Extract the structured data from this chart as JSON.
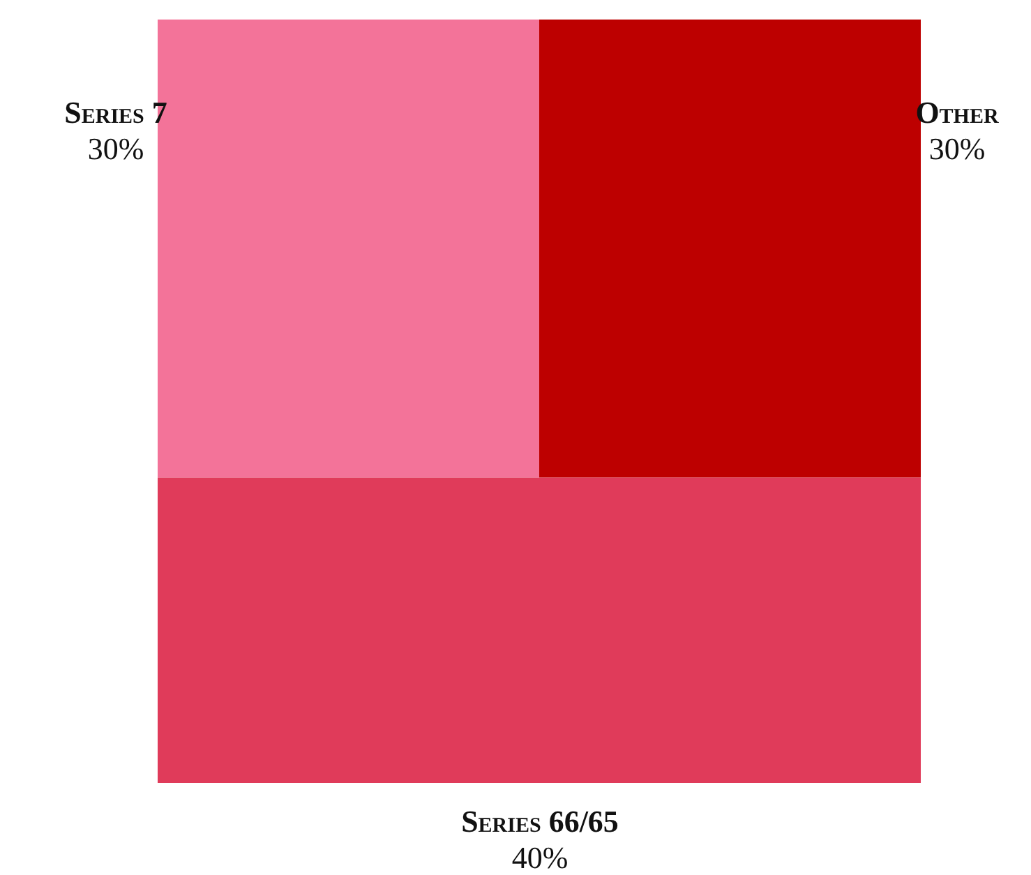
{
  "chart_data": {
    "type": "other",
    "categories": [
      "Series 7",
      "Other",
      "Series 66/65"
    ],
    "values": [
      30,
      30,
      40
    ],
    "value_labels": [
      "30%",
      "30%",
      "40%"
    ],
    "colors": [
      "#f37399",
      "#bd0000",
      "#e03b5a"
    ]
  }
}
